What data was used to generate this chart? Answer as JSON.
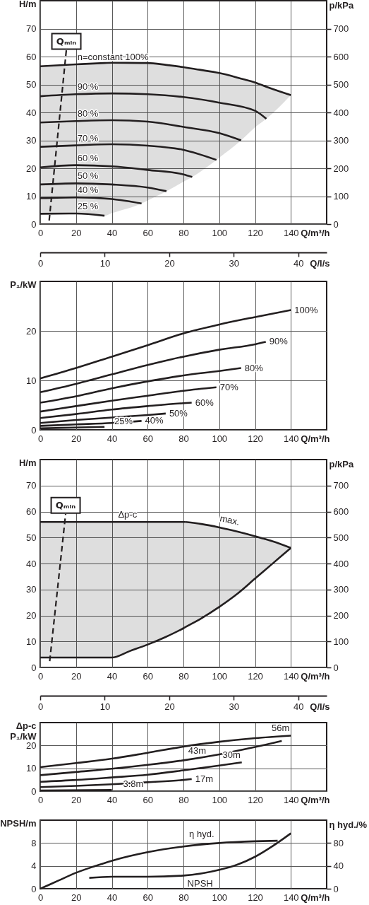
{
  "chart_data": [
    {
      "type": "line",
      "xlabel": "Q/m³/h",
      "ylabel": "H/m",
      "y2label": "p/kPa",
      "x2label": "Q/l/s",
      "xlim": [
        0,
        160
      ],
      "xticks": [
        0,
        20,
        40,
        60,
        80,
        100,
        120,
        140
      ],
      "ylim": [
        0,
        80
      ],
      "yticks": [
        0,
        10,
        20,
        30,
        40,
        50,
        60,
        70
      ],
      "y2lim": [
        0,
        800
      ],
      "y2ticks": [
        0,
        100,
        200,
        300,
        400,
        500,
        600,
        700
      ],
      "x2lim": [
        0,
        44.4
      ],
      "x2ticks": [
        0,
        10,
        20,
        30,
        40
      ],
      "grid": true,
      "series": [
        {
          "name": "n=constant 100%",
          "color": "#231f20",
          "x": [
            0,
            20,
            35.9,
            40,
            56.6,
            60,
            70.5,
            80,
            84.9,
            98.4,
            100,
            112.2,
            120,
            126.3,
            140
          ],
          "values": [
            56.5,
            57.2,
            57.7,
            57.8,
            57.7,
            57.7,
            57.0,
            56.2,
            55.7,
            54.3,
            54.1,
            52.1,
            50.7,
            49.2,
            46.2
          ],
          "upper": [
            56.5,
            57.2,
            57.7,
            57.8,
            57.7,
            57.7,
            57.0,
            56.2,
            55.7,
            54.3,
            54.1,
            52.1,
            50.7,
            49.2,
            46.2
          ],
          "lower": [
            3.7,
            3.8,
            3.0,
            3.9,
            7.4,
            8.5,
            11.8,
            15.2,
            16.9,
            23.0,
            23.8,
            30.0,
            34.7,
            37.7,
            46.2
          ]
        },
        {
          "name": "90 %",
          "color": "#231f20",
          "x": [
            0,
            20,
            40,
            60,
            80,
            100,
            120,
            126.3
          ],
          "values": [
            45.8,
            46.5,
            46.8,
            46.5,
            45.5,
            43.5,
            40.6,
            37.7
          ]
        },
        {
          "name": "80 %",
          "color": "#231f20",
          "x": [
            0,
            20,
            40,
            60,
            80,
            100,
            112.2
          ],
          "values": [
            36.4,
            36.9,
            37.2,
            36.7,
            34.8,
            32.6,
            30.0
          ]
        },
        {
          "name": "70 %",
          "color": "#231f20",
          "x": [
            0,
            20,
            40,
            60,
            80,
            98.4
          ],
          "values": [
            27.7,
            28.2,
            28.6,
            28.1,
            26.6,
            23.0
          ]
        },
        {
          "name": "60 %",
          "color": "#231f20",
          "x": [
            0,
            20,
            40,
            60,
            80,
            84.9
          ],
          "values": [
            20.3,
            21.1,
            20.7,
            19.4,
            17.8,
            16.9
          ]
        },
        {
          "name": "50 %",
          "color": "#231f20",
          "x": [
            0,
            20,
            40,
            60,
            70.5
          ],
          "values": [
            14.2,
            14.6,
            14.2,
            13.1,
            11.8
          ]
        },
        {
          "name": "40 %",
          "color": "#231f20",
          "x": [
            0,
            20,
            40,
            56.6
          ],
          "values": [
            9.3,
            9.6,
            9.0,
            7.4
          ]
        },
        {
          "name": "25 %",
          "color": "#231f20",
          "x": [
            0,
            20,
            35.9
          ],
          "values": [
            3.7,
            3.8,
            3.0
          ]
        },
        {
          "name": "Qₘᵢₙ",
          "color": "#231f20",
          "line_style": "dashed",
          "x": [
            5.0,
            14.6
          ],
          "values": [
            1.3,
            62.4
          ]
        }
      ]
    },
    {
      "type": "line",
      "xlabel": "Q/m³/h",
      "ylabel": "P₁/kW",
      "xlim": [
        0,
        160
      ],
      "xticks": [
        0,
        20,
        40,
        60,
        80,
        100,
        120,
        140
      ],
      "ylim": [
        0,
        30
      ],
      "yticks": [
        0,
        10,
        20
      ],
      "grid": true,
      "series": [
        {
          "name": "100%",
          "color": "#231f20",
          "x": [
            0,
            20,
            40,
            60,
            80,
            100,
            120,
            140
          ],
          "values": [
            10.4,
            12.5,
            14.8,
            17.1,
            19.5,
            21.3,
            22.8,
            24.2
          ]
        },
        {
          "name": "90%",
          "color": "#231f20",
          "x": [
            0,
            20,
            40,
            60,
            80,
            100,
            120,
            126
          ],
          "values": [
            7.6,
            9.3,
            11.2,
            13.1,
            14.8,
            16.2,
            17.3,
            17.8
          ]
        },
        {
          "name": "80%",
          "color": "#231f20",
          "x": [
            0,
            20,
            40,
            60,
            80,
            100,
            112.2
          ],
          "values": [
            5.5,
            6.8,
            8.4,
            9.8,
            11.0,
            11.9,
            12.5
          ]
        },
        {
          "name": "70%",
          "color": "#231f20",
          "x": [
            0,
            20,
            40,
            60,
            80,
            98.4
          ],
          "values": [
            3.7,
            4.8,
            5.9,
            6.9,
            7.9,
            8.6
          ]
        },
        {
          "name": "60%",
          "color": "#231f20",
          "x": [
            0,
            20,
            40,
            60,
            80,
            84.6
          ],
          "values": [
            2.4,
            3.2,
            4.1,
            4.8,
            5.4,
            5.5
          ]
        },
        {
          "name": "50%",
          "color": "#231f20",
          "x": [
            0,
            20,
            40,
            60,
            70.1
          ],
          "values": [
            1.4,
            2.0,
            2.5,
            3.0,
            3.3
          ]
        },
        {
          "name": "40%",
          "color": "#231f20",
          "x": [
            0,
            20,
            40,
            56.6
          ],
          "values": [
            0.8,
            1.1,
            1.4,
            1.8
          ]
        },
        {
          "name": "25%",
          "color": "#231f20",
          "x": [
            0,
            35.9
          ],
          "values": [
            0.3,
            0.6
          ]
        }
      ]
    },
    {
      "type": "line",
      "xlabel": "Q/m³/h",
      "ylabel": "H/m",
      "y2label": "p/kPa",
      "x2label": "Q/l/s",
      "xlim": [
        0,
        160
      ],
      "xticks": [
        0,
        20,
        40,
        60,
        80,
        100,
        120,
        140
      ],
      "ylim": [
        0,
        80
      ],
      "yticks": [
        0,
        10,
        20,
        30,
        40,
        50,
        60,
        70
      ],
      "y2lim": [
        0,
        800
      ],
      "y2ticks": [
        0,
        100,
        200,
        300,
        400,
        500,
        600,
        700
      ],
      "x2lim": [
        0,
        44.4
      ],
      "x2ticks": [
        0,
        10,
        20,
        30,
        40
      ],
      "grid": true,
      "series": [
        {
          "name": "Δp-c",
          "color": "#231f20",
          "x": [
            0,
            81.3
          ],
          "values": [
            56,
            56
          ]
        },
        {
          "name": "max.",
          "color": "#231f20",
          "x": [
            81.3,
            90,
            100,
            110,
            120,
            130,
            140
          ],
          "values": [
            56,
            55.2,
            53.9,
            52.3,
            50.5,
            48.5,
            46.0
          ]
        },
        {
          "color": "#231f20",
          "x": [
            0,
            40,
            50,
            60,
            70,
            80,
            81.3,
            90,
            100,
            110,
            120,
            130,
            140
          ],
          "values": [
            3.8,
            3.8,
            6.3,
            8.8,
            11.7,
            15.1,
            15.6,
            18.9,
            23.3,
            28.3,
            34.2,
            40.1,
            46.0
          ],
          "upper": [
            56,
            56,
            56,
            56,
            56,
            56,
            56,
            55.2,
            53.9,
            52.3,
            50.5,
            48.5,
            46.0
          ],
          "lower": [
            3.8,
            3.8,
            6.3,
            8.8,
            11.7,
            15.1,
            15.6,
            18.9,
            23.3,
            28.3,
            34.2,
            40.1,
            46.0
          ]
        },
        {
          "name": "Qₘᵢₙ",
          "color": "#231f20",
          "line_style": "dashed",
          "x": [
            5.3,
            14.2
          ],
          "values": [
            2.4,
            59.1
          ]
        }
      ]
    },
    {
      "type": "line",
      "xlabel": "Q/m³/h",
      "ylabel": "Δp-c\nP₁/kW",
      "xlim": [
        0,
        160
      ],
      "xticks": [
        0,
        20,
        40,
        60,
        80,
        100,
        120,
        140
      ],
      "ylim": [
        0,
        30
      ],
      "yticks": [
        0,
        10,
        20
      ],
      "grid": true,
      "series": [
        {
          "name": "56m",
          "color": "#231f20",
          "x": [
            0,
            20,
            40,
            60,
            80,
            100,
            120,
            140
          ],
          "values": [
            10.5,
            12.3,
            14.2,
            16.8,
            19.5,
            21.6,
            23.2,
            24.3
          ]
        },
        {
          "name": "43m",
          "color": "#231f20",
          "x": [
            0,
            20,
            40,
            60,
            80,
            100,
            120,
            134.9
          ],
          "values": [
            7.0,
            8.4,
            9.8,
            11.5,
            13.5,
            16.1,
            19.3,
            22.0
          ]
        },
        {
          "name": "30m",
          "color": "#231f20",
          "x": [
            0,
            20,
            40,
            60,
            80,
            100,
            112.6
          ],
          "values": [
            4.1,
            4.9,
            6.0,
            7.2,
            9.1,
            11.2,
            12.6
          ]
        },
        {
          "name": "17m",
          "color": "#231f20",
          "x": [
            0,
            20,
            40,
            60,
            80,
            84.6
          ],
          "values": [
            1.8,
            2.3,
            3.0,
            3.9,
            4.9,
            5.3
          ]
        },
        {
          "name": "3.8m",
          "color": "#231f20",
          "x": [
            0,
            40
          ],
          "values": [
            0.3,
            0.5
          ]
        }
      ]
    },
    {
      "type": "line",
      "xlabel": "Q/m³/h",
      "ylabel": "NPSH/m",
      "y2label": "η hyd./%",
      "xlim": [
        0,
        160
      ],
      "xticks": [
        0,
        20,
        40,
        60,
        80,
        100,
        120,
        140
      ],
      "ylim": [
        0,
        12
      ],
      "yticks": [
        0,
        4,
        8
      ],
      "y2lim": [
        0,
        120
      ],
      "y2ticks": [
        0,
        40,
        80
      ],
      "grid": true,
      "series": [
        {
          "name": "η hyd.",
          "axis": "y2",
          "color": "#231f20",
          "x": [
            0,
            10,
            20,
            30,
            40,
            60,
            80,
            100,
            120,
            132.6
          ],
          "values": [
            0,
            14,
            28,
            39,
            49,
            64,
            74,
            80,
            83,
            84
          ]
        },
        {
          "name": "NPSH",
          "color": "#231f20",
          "x": [
            27.4,
            40,
            60,
            80,
            100,
            110,
            120,
            130,
            140
          ],
          "values": [
            1.9,
            2.1,
            2.1,
            2.3,
            3.3,
            4.2,
            5.6,
            7.5,
            9.7
          ]
        }
      ]
    }
  ]
}
